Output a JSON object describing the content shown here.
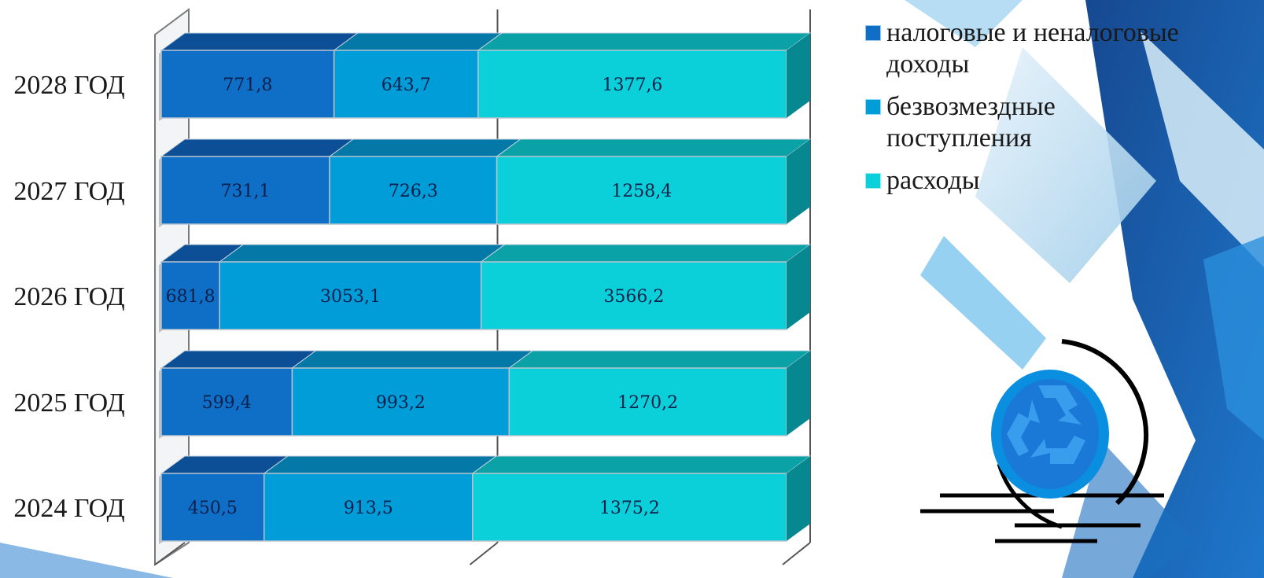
{
  "chart_data": {
    "type": "bar",
    "orientation": "horizontal",
    "stacked": true,
    "style": "3d",
    "categories": [
      "2024 ГОД",
      "2025 ГОД",
      "2026 ГОД",
      "2027 ГОД",
      "2028 ГОД"
    ],
    "series": [
      {
        "name": "налоговые и неналоговые доходы",
        "color": "#0f6fc6",
        "top_color": "#0c4f96",
        "values": [
          450.5,
          599.4,
          681.8,
          731.1,
          771.8
        ],
        "labels": [
          "450,5",
          "599,4",
          "681,8",
          "731,1",
          "771,8"
        ]
      },
      {
        "name": "безвозмездные поступления",
        "color": "#009dd9",
        "top_color": "#0479a8",
        "values": [
          913.5,
          993.2,
          3053.1,
          726.3,
          643.7
        ],
        "labels": [
          "913,5",
          "993,2",
          "3053,1",
          "726,3",
          "643,7"
        ]
      },
      {
        "name": "расходы",
        "color": "#0bd0d9",
        "top_color": "#0aa2a6",
        "values": [
          1375.2,
          1270.2,
          3566.2,
          1258.4,
          1377.6
        ],
        "labels": [
          "1375,2",
          "1270,2",
          "3566,2",
          "1258,4",
          "1377,6"
        ]
      }
    ],
    "normalized": true,
    "xlim": [
      0,
      100
    ],
    "grid": true,
    "legend_position": "top-right"
  }
}
